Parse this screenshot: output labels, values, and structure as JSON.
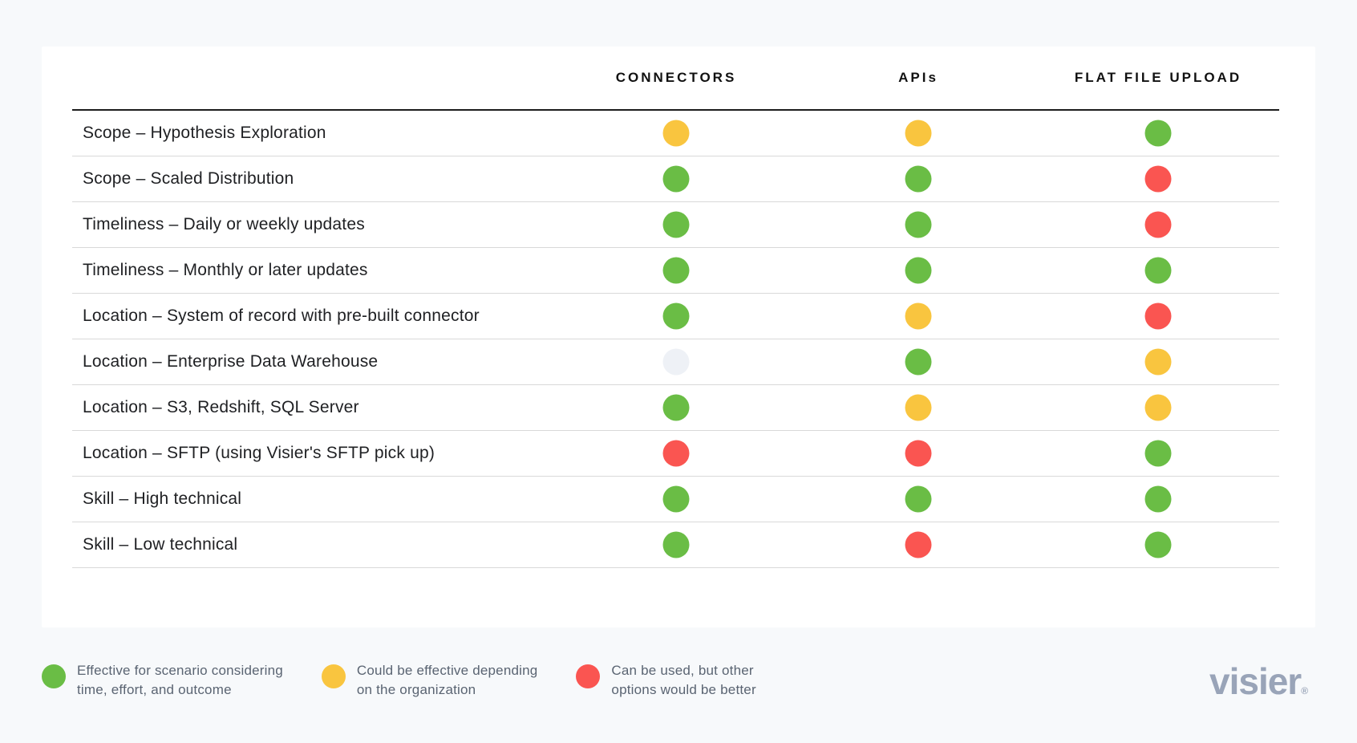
{
  "page": {
    "background": "#F7F9FB"
  },
  "table": {
    "columns": [
      {
        "label": "CONNECTORS"
      },
      {
        "label": "APIs"
      },
      {
        "label": "FLAT FILE UPLOAD"
      }
    ],
    "rows": [
      {
        "label": "Scope – Hypothesis Exploration",
        "cells": [
          "yellow",
          "yellow",
          "green"
        ]
      },
      {
        "label": "Scope – Scaled Distribution",
        "cells": [
          "green",
          "green",
          "red"
        ]
      },
      {
        "label": "Timeliness – Daily or weekly updates",
        "cells": [
          "green",
          "green",
          "red"
        ]
      },
      {
        "label": "Timeliness – Monthly or later updates",
        "cells": [
          "green",
          "green",
          "green"
        ]
      },
      {
        "label": "Location – System of record with pre-built connector",
        "cells": [
          "green",
          "yellow",
          "red"
        ]
      },
      {
        "label": "Location – Enterprise Data Warehouse",
        "cells": [
          "none",
          "green",
          "yellow"
        ]
      },
      {
        "label": "Location – S3, Redshift, SQL Server",
        "cells": [
          "green",
          "yellow",
          "yellow"
        ]
      },
      {
        "label": "Location – SFTP (using Visier's SFTP pick up)",
        "cells": [
          "red",
          "red",
          "green"
        ]
      },
      {
        "label": "Skill – High technical",
        "cells": [
          "green",
          "green",
          "green"
        ]
      },
      {
        "label": "Skill – Low technical",
        "cells": [
          "green",
          "red",
          "green"
        ]
      }
    ]
  },
  "legend": [
    {
      "status": "green",
      "text": "Effective for scenario considering\ntime, effort, and outcome"
    },
    {
      "status": "yellow",
      "text": "Could be effective depending\non the organization"
    },
    {
      "status": "red",
      "text": "Can be used, but other\noptions would be better"
    }
  ],
  "status_colors": {
    "green": "#6ABD45",
    "yellow": "#F9C53F",
    "red": "#FA5551",
    "none": "#EEF1F6"
  },
  "brand": {
    "logo_text": "visier",
    "registered_mark": "®",
    "logo_color": "#99A4B8"
  }
}
